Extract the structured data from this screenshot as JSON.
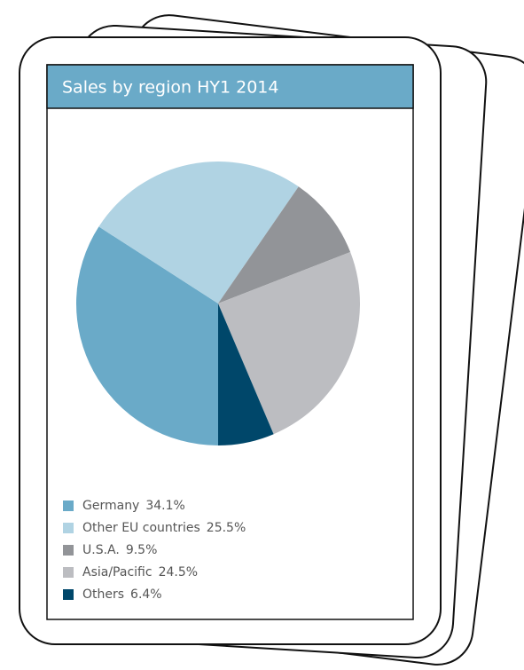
{
  "chart_data": {
    "type": "pie",
    "title": "Sales by region HY1 2014",
    "categories": [
      "Germany",
      "Other EU countries",
      "U.S.A.",
      "Asia/Pacific",
      "Others"
    ],
    "values": [
      34.1,
      25.5,
      9.5,
      24.5,
      6.4
    ],
    "value_labels": [
      "34.1%",
      "25.5%",
      "9.5%",
      "24.5%",
      "6.4%"
    ],
    "colors": [
      "#6aaac8",
      "#b0d3e3",
      "#929498",
      "#bcbdc1",
      "#00476a"
    ]
  }
}
